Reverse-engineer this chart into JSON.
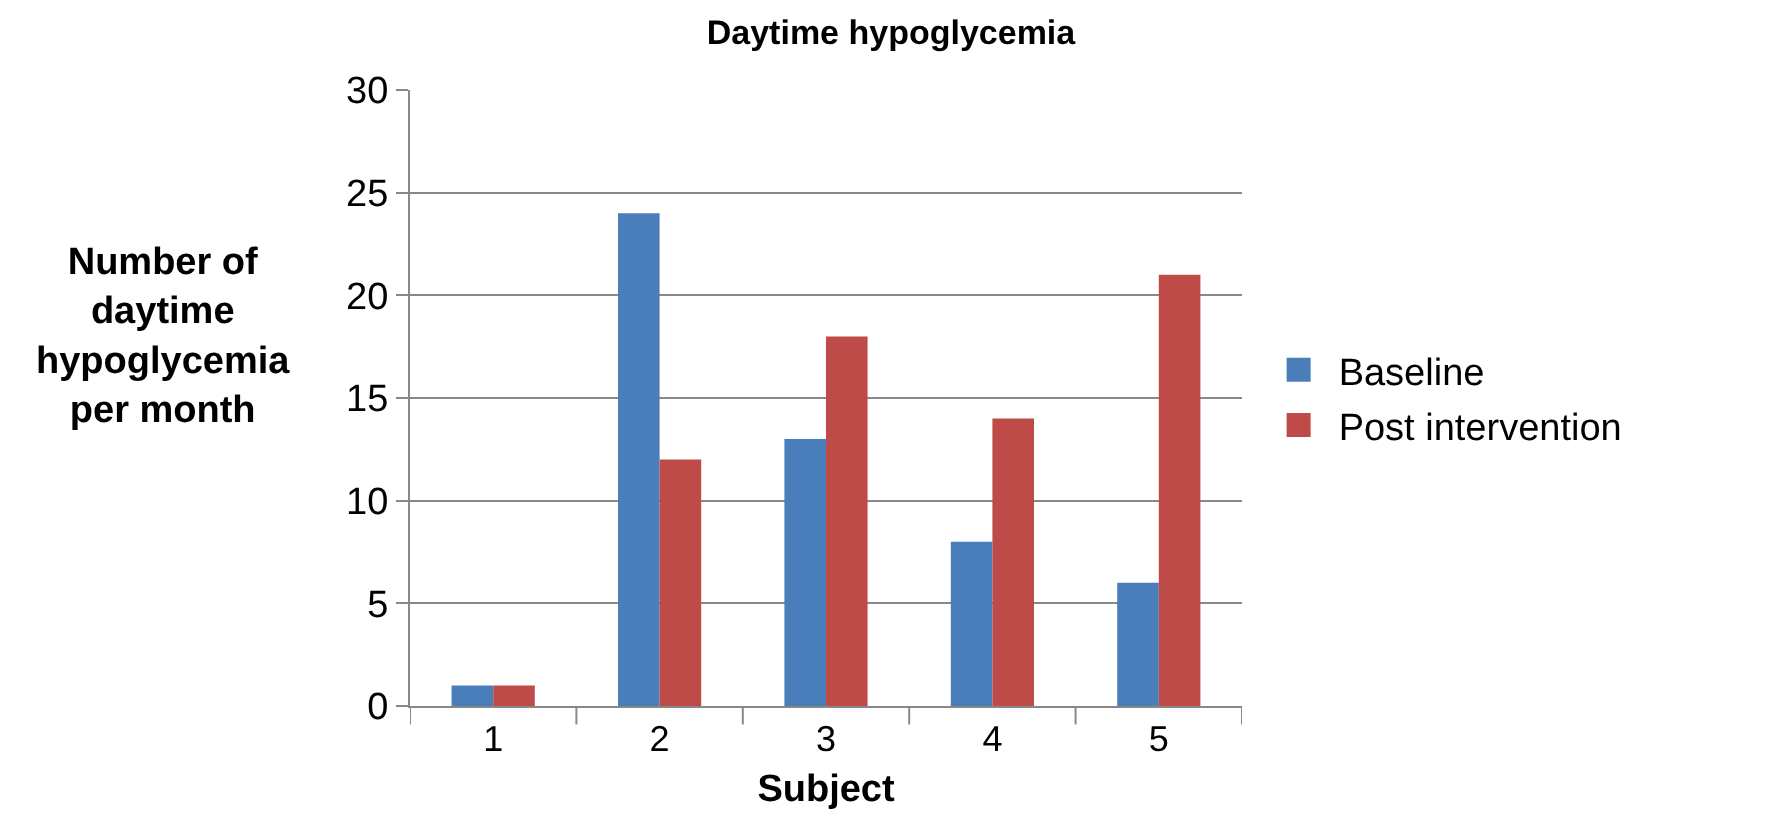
{
  "chart_data": {
    "type": "bar",
    "title": "Daytime hypoglycemia",
    "xlabel": "Subject",
    "ylabel": "Number of daytime hypoglycemia per month",
    "categories": [
      "1",
      "2",
      "3",
      "4",
      "5"
    ],
    "series": [
      {
        "name": "Baseline",
        "color": "#4a7ebb",
        "values": [
          1,
          24,
          13,
          8,
          6
        ]
      },
      {
        "name": "Post intervention",
        "color": "#be4b48",
        "values": [
          1,
          12,
          18,
          14,
          21
        ]
      }
    ],
    "ylim": [
      0,
      30
    ],
    "yticks": [
      0,
      5,
      10,
      15,
      20,
      25,
      30
    ],
    "grid": "y",
    "legend": "right"
  }
}
